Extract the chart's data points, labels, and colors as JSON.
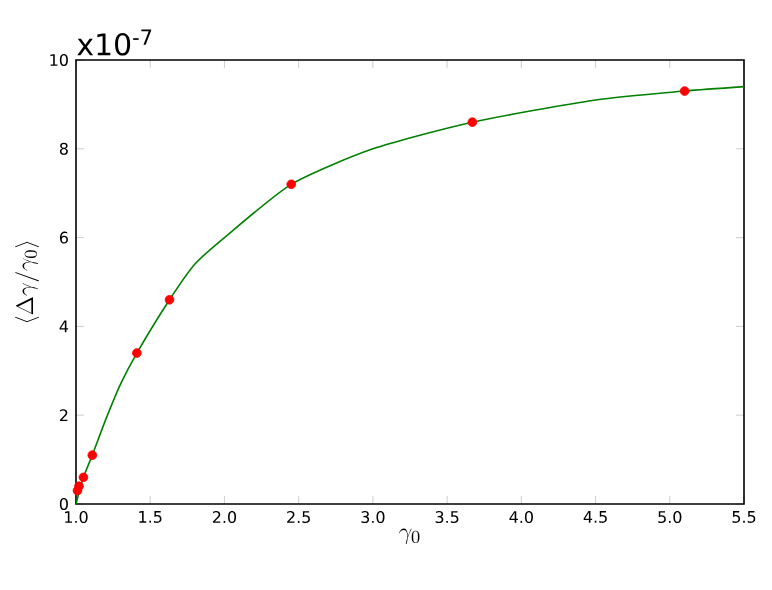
{
  "chart_data": {
    "type": "line",
    "xlabel": "\\gamma_0",
    "ylabel": "\\langle \\Delta\\gamma/\\gamma_0\\rangle",
    "annotations": [
      "x10$^{-7}$"
    ],
    "xlim": [
      1.0,
      5.5
    ],
    "xticks": [
      {
        "value": 1.0,
        "label": "1.0"
      },
      {
        "value": 1.5,
        "label": "1.5"
      },
      {
        "value": 2.0,
        "label": "2.0"
      },
      {
        "value": 2.5,
        "label": "2.5"
      },
      {
        "value": 3.0,
        "label": "3.0"
      },
      {
        "value": 3.5,
        "label": "3.5"
      },
      {
        "value": 4.0,
        "label": "4.0"
      },
      {
        "value": 4.5,
        "label": "4.5"
      },
      {
        "value": 5.0,
        "label": "5.0"
      },
      {
        "value": 5.5,
        "label": "5.5"
      }
    ],
    "ylim": [
      0,
      10
    ],
    "yticks": [
      0,
      2,
      4,
      6,
      8,
      10
    ],
    "grid": false,
    "series": [
      {
        "color": "#008000",
        "marker": "none",
        "line_style": "solid",
        "x": [
          1.0,
          1.05,
          1.11,
          1.2,
          1.3,
          1.41,
          1.63,
          1.8,
          2.0,
          2.45,
          3.0,
          3.67,
          4.5,
          5.1,
          5.5
        ],
        "values": [
          0,
          0.6,
          1.1,
          1.9,
          2.7,
          3.4,
          4.6,
          5.4,
          6.0,
          7.2,
          8.0,
          8.6,
          9.1,
          9.3,
          9.4
        ]
      },
      {
        "type": "scatter",
        "color": "#ff0000",
        "marker": "circle",
        "x": [
          1.01,
          1.02,
          1.05,
          1.11,
          1.41,
          1.63,
          2.45,
          3.67,
          5.1
        ],
        "values": [
          0.3,
          0.4,
          0.6,
          1.1,
          3.4,
          4.6,
          7.2,
          8.6,
          9.3
        ]
      }
    ]
  }
}
